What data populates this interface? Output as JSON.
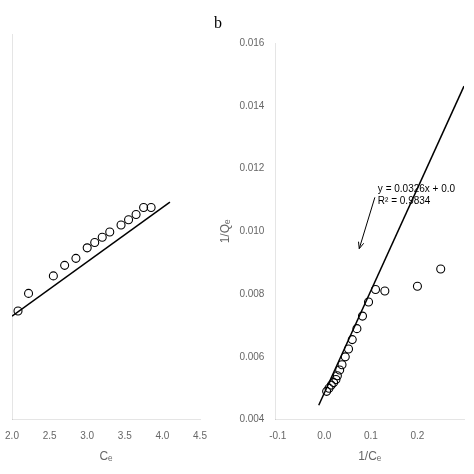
{
  "chart_data": [
    {
      "type": "scatter",
      "x_label": "Cₑ",
      "xlim": [
        2.0,
        4.5
      ],
      "xticks": [
        {
          "value": 2.0,
          "label": "2.0"
        },
        {
          "value": 2.5,
          "label": "2.5"
        },
        {
          "value": 3.0,
          "label": "3.0"
        },
        {
          "value": 3.5,
          "label": "3.5"
        },
        {
          "value": 4.0,
          "label": "4.0"
        },
        {
          "value": 4.5,
          "label": "4.5"
        }
      ],
      "ylim": [
        4.0,
        6.2
      ],
      "yticks": [],
      "tick_labels": "x",
      "grid": false,
      "series": [
        {
          "type": "scatter",
          "marker": "circle",
          "color": "#000000",
          "x": [
            2.08,
            2.22,
            2.55,
            2.7,
            2.85,
            3.0,
            3.1,
            3.2,
            3.3,
            3.45,
            3.55,
            3.65,
            3.75,
            3.85
          ],
          "values": [
            4.62,
            4.72,
            4.82,
            4.88,
            4.92,
            4.98,
            5.01,
            5.04,
            5.07,
            5.11,
            5.14,
            5.17,
            5.21,
            5.21
          ]
        },
        {
          "type": "line",
          "line_style": "solid",
          "color": "#000000",
          "x": [
            2.0,
            4.1
          ],
          "values": [
            4.59,
            5.241
          ]
        }
      ]
    },
    {
      "type": "scatter",
      "title": "b",
      "x_label": "1/Cₑ",
      "y_label": "1/Qₑ",
      "xlim": [
        -0.105,
        0.3
      ],
      "xticks": [
        -0.1,
        {
          "value": 0.0,
          "label": "0.0"
        },
        0.1,
        0.2
      ],
      "ylim": [
        0.004,
        0.016
      ],
      "yticks": [
        0.004,
        0.006,
        0.008,
        {
          "value": 0.01,
          "label": "0.010"
        },
        0.012,
        0.014,
        0.016
      ],
      "grid": false,
      "series": [
        {
          "type": "scatter",
          "marker": "circle",
          "color": "#000000",
          "x": [
            0.005,
            0.01,
            0.015,
            0.02,
            0.025,
            0.028,
            0.033,
            0.038,
            0.045,
            0.052,
            0.06,
            0.07,
            0.082,
            0.095,
            0.11,
            0.13,
            0.2,
            0.25
          ],
          "values": [
            0.0049,
            0.005,
            0.0051,
            0.00518,
            0.00528,
            0.0054,
            0.00558,
            0.00575,
            0.006,
            0.00625,
            0.00655,
            0.0069,
            0.0073,
            0.00775,
            0.00815,
            0.0081,
            0.00825,
            0.0088
          ]
        },
        {
          "type": "line",
          "line_style": "solid",
          "color": "#000000",
          "x": [
            -0.012,
            0.3
          ],
          "values": [
            0.0044588,
            0.01463
          ]
        }
      ],
      "annotations": [
        {
          "text": "y = 0.0326x + 0.0\nR² = 0.9834",
          "x": 0.115,
          "y": 0.01115,
          "arrow_x": 0.075,
          "arrow_y": 0.00945
        }
      ]
    }
  ]
}
